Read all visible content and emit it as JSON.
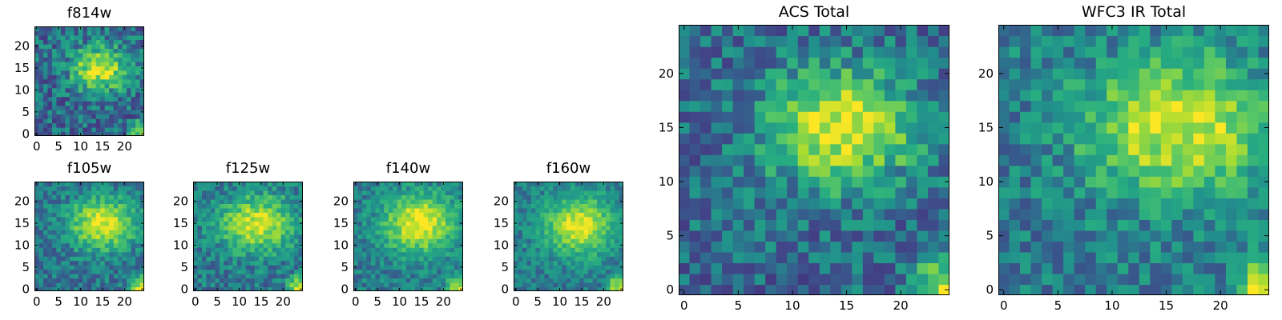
{
  "chart_data": [
    {
      "type": "heatmap",
      "title": "f814w",
      "xlim": [
        -0.5,
        24.5
      ],
      "ylim": [
        -0.5,
        24.5
      ],
      "xticks": [
        0,
        5,
        10,
        15,
        20
      ],
      "yticks": [
        0,
        5,
        10,
        15,
        20
      ],
      "source": {
        "cx": 14.5,
        "cy": 15,
        "sx": 4.5,
        "sy": 3.5,
        "amp": 0.6,
        "base": 0.38,
        "noise": 0.38,
        "seed": 11
      },
      "corner": {
        "x": 24,
        "y": 0,
        "r": 4.5,
        "amp": 0.55
      }
    },
    {
      "type": "heatmap",
      "title": "f105w",
      "xlim": [
        -0.5,
        24.5
      ],
      "ylim": [
        -0.5,
        24.5
      ],
      "xticks": [
        0,
        5,
        10,
        15,
        20
      ],
      "yticks": [
        0,
        5,
        10,
        15,
        20
      ],
      "source": {
        "cx": 15,
        "cy": 15,
        "sx": 5.5,
        "sy": 4.2,
        "amp": 0.55,
        "base": 0.42,
        "noise": 0.26,
        "seed": 23
      },
      "corner": {
        "x": 24,
        "y": 0,
        "r": 4.5,
        "amp": 0.6
      }
    },
    {
      "type": "heatmap",
      "title": "f125w",
      "xlim": [
        -0.5,
        24.5
      ],
      "ylim": [
        -0.5,
        24.5
      ],
      "xticks": [
        0,
        5,
        10,
        15,
        20
      ],
      "yticks": [
        0,
        5,
        10,
        15,
        20
      ],
      "source": {
        "cx": 14,
        "cy": 15,
        "sx": 6,
        "sy": 4.5,
        "amp": 0.5,
        "base": 0.44,
        "noise": 0.28,
        "seed": 37
      },
      "corner": {
        "x": 24,
        "y": 0,
        "r": 4.5,
        "amp": 0.55
      }
    },
    {
      "type": "heatmap",
      "title": "f140w",
      "xlim": [
        -0.5,
        24.5
      ],
      "ylim": [
        -0.5,
        24.5
      ],
      "xticks": [
        0,
        5,
        10,
        15,
        20
      ],
      "yticks": [
        0,
        5,
        10,
        15,
        20
      ],
      "source": {
        "cx": 14.5,
        "cy": 15,
        "sx": 5.5,
        "sy": 4.5,
        "amp": 0.55,
        "base": 0.46,
        "noise": 0.24,
        "seed": 41
      },
      "corner": {
        "x": 24,
        "y": 0,
        "r": 4.5,
        "amp": 0.55
      }
    },
    {
      "type": "heatmap",
      "title": "f160w",
      "xlim": [
        -0.5,
        24.5
      ],
      "ylim": [
        -0.5,
        24.5
      ],
      "xticks": [
        0,
        5,
        10,
        15,
        20
      ],
      "yticks": [
        0,
        5,
        10,
        15,
        20
      ],
      "source": {
        "cx": 14.5,
        "cy": 14.5,
        "sx": 5.5,
        "sy": 4.5,
        "amp": 0.5,
        "base": 0.46,
        "noise": 0.22,
        "seed": 53
      },
      "corner": {
        "x": 24,
        "y": 0,
        "r": 5,
        "amp": 0.55
      }
    },
    {
      "type": "heatmap",
      "title": "ACS Total",
      "xlim": [
        -0.5,
        24.5
      ],
      "ylim": [
        -0.5,
        24.5
      ],
      "xticks": [
        0,
        5,
        10,
        15,
        20
      ],
      "yticks": [
        0,
        5,
        10,
        15,
        20
      ],
      "source": {
        "cx": 14.5,
        "cy": 15,
        "sx": 5,
        "sy": 3.8,
        "amp": 0.6,
        "base": 0.38,
        "noise": 0.34,
        "seed": 67
      },
      "corner": {
        "x": 24,
        "y": 0,
        "r": 4.5,
        "amp": 0.6
      }
    },
    {
      "type": "heatmap",
      "title": "WFC3 IR Total",
      "xlim": [
        -0.5,
        24.5
      ],
      "ylim": [
        -0.5,
        24.5
      ],
      "xticks": [
        0,
        5,
        10,
        15,
        20
      ],
      "yticks": [
        0,
        5,
        10,
        15,
        20
      ],
      "source": {
        "cx": 16,
        "cy": 15,
        "sx": 6,
        "sy": 4.5,
        "amp": 0.5,
        "base": 0.45,
        "noise": 0.3,
        "seed": 79
      },
      "corner": {
        "x": 24,
        "y": 0,
        "r": 4.5,
        "amp": 0.55
      }
    }
  ]
}
